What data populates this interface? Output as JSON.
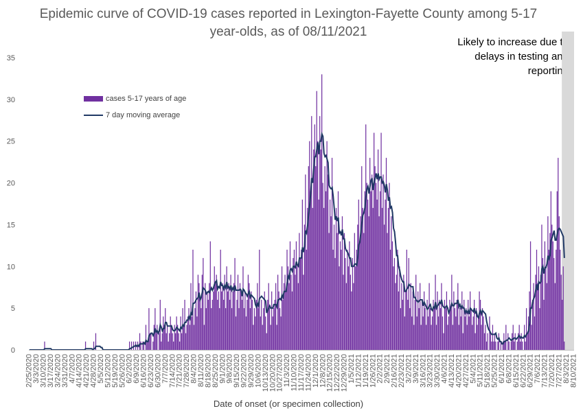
{
  "chart_data": {
    "type": "bar",
    "title": "Epidemic curve of COVID-19 cases reported in Lexington-Fayette County among 5-17 year-olds, as of 08/11/2021",
    "xlabel": "Date of onset (or specimen collection)",
    "ylabel": "",
    "ylim": [
      0,
      35
    ],
    "yticks": [
      0,
      5,
      10,
      15,
      20,
      25,
      30,
      35
    ],
    "grid": false,
    "legend_position": "upper-left",
    "x_start": "2020-02-25",
    "x_end": "2021-08-10",
    "x_tick_labels": [
      "2/25/2020",
      "3/3/2020",
      "3/10/2020",
      "3/17/2020",
      "3/24/2020",
      "3/31/2020",
      "4/7/2020",
      "4/14/2020",
      "4/21/2020",
      "4/28/2020",
      "5/5/2020",
      "5/12/2020",
      "5/19/2020",
      "5/26/2020",
      "6/2/2020",
      "6/9/2020",
      "6/16/2020",
      "6/23/2020",
      "6/30/2020",
      "7/7/2020",
      "7/14/2020",
      "7/21/2020",
      "7/28/2020",
      "8/4/2020",
      "8/11/2020",
      "8/18/2020",
      "8/25/2020",
      "9/1/2020",
      "9/8/2020",
      "9/15/2020",
      "9/22/2020",
      "9/29/2020",
      "10/6/2020",
      "10/13/2020",
      "10/20/2020",
      "10/27/2020",
      "11/3/2020",
      "11/10/2020",
      "11/17/2020",
      "11/24/2020",
      "12/1/2020",
      "12/8/2020",
      "12/15/2020",
      "12/22/2020",
      "12/29/2020",
      "1/5/2021",
      "1/12/2021",
      "1/19/2021",
      "1/26/2021",
      "2/2/2021",
      "2/9/2021",
      "2/16/2021",
      "2/23/2021",
      "3/2/2021",
      "3/9/2021",
      "3/16/2021",
      "3/23/2021",
      "3/30/2021",
      "4/6/2021",
      "4/13/2021",
      "4/20/2021",
      "4/27/2021",
      "5/4/2021",
      "5/11/2021",
      "5/18/2021",
      "5/25/2021",
      "6/1/2021",
      "6/8/2021",
      "6/15/2021",
      "6/22/2021",
      "6/29/2021",
      "7/6/2021",
      "7/13/2021",
      "7/20/2021",
      "7/27/2021",
      "8/3/2021",
      "8/10/2021"
    ],
    "series": [
      {
        "name": "cases 5-17 years of age",
        "kind": "bar",
        "color": "#7030A0",
        "values": [
          0,
          0,
          0,
          0,
          0,
          0,
          0,
          0,
          0,
          0,
          0,
          0,
          0,
          0,
          0,
          1,
          0,
          0,
          0,
          0,
          0,
          0,
          0,
          0,
          0,
          0,
          0,
          0,
          0,
          0,
          0,
          0,
          0,
          0,
          0,
          0,
          0,
          0,
          0,
          0,
          0,
          0,
          0,
          0,
          0,
          0,
          0,
          0,
          0,
          0,
          0,
          0,
          0,
          0,
          0,
          1,
          0,
          0,
          0,
          0,
          0,
          0,
          0,
          1,
          0,
          2,
          0,
          0,
          0,
          0,
          0,
          0,
          0,
          0,
          0,
          0,
          0,
          0,
          0,
          0,
          0,
          0,
          0,
          0,
          0,
          0,
          0,
          0,
          0,
          0,
          0,
          0,
          0,
          0,
          0,
          0,
          0,
          0,
          1,
          0,
          1,
          0,
          1,
          0,
          1,
          0,
          1,
          0,
          2,
          1,
          0,
          1,
          1,
          0,
          3,
          1,
          1,
          5,
          2,
          2,
          0,
          1,
          3,
          5,
          2,
          3,
          0,
          2,
          6,
          1,
          2,
          4,
          3,
          5,
          2,
          3,
          1,
          2,
          4,
          3,
          2,
          1,
          3,
          2,
          4,
          3,
          2,
          1,
          4,
          2,
          5,
          3,
          6,
          2,
          3,
          4,
          5,
          3,
          8,
          4,
          12,
          3,
          5,
          7,
          4,
          9,
          8,
          6,
          5,
          9,
          11,
          3,
          8,
          5,
          7,
          6,
          8,
          13,
          5,
          6,
          7,
          10,
          8,
          9,
          6,
          7,
          5,
          12,
          7,
          8,
          6,
          9,
          5,
          10,
          7,
          8,
          6,
          9,
          5,
          7,
          8,
          11,
          4,
          6,
          9,
          5,
          8,
          7,
          6,
          10,
          5,
          7,
          4,
          6,
          9,
          8,
          5,
          7,
          6,
          3,
          5,
          4,
          6,
          8,
          5,
          12,
          4,
          6,
          3,
          5,
          7,
          4,
          2,
          6,
          8,
          5,
          3,
          7,
          4,
          5,
          6,
          8,
          3,
          9,
          7,
          5,
          4,
          10,
          6,
          8,
          9,
          7,
          12,
          10,
          8,
          13,
          9,
          7,
          11,
          12,
          9,
          13,
          10,
          8,
          14,
          11,
          12,
          18,
          9,
          15,
          21,
          12,
          17,
          22,
          25,
          19,
          28,
          17,
          24,
          27,
          22,
          31,
          25,
          18,
          28,
          24,
          33,
          20,
          17,
          22,
          19,
          25,
          21,
          14,
          18,
          16,
          23,
          12,
          15,
          11,
          17,
          14,
          19,
          10,
          13,
          12,
          16,
          9,
          14,
          11,
          8,
          12,
          10,
          13,
          9,
          7,
          11,
          8,
          14,
          10,
          12,
          15,
          18,
          13,
          16,
          22,
          17,
          14,
          19,
          27,
          20,
          18,
          16,
          23,
          19,
          21,
          17,
          26,
          22,
          20,
          18,
          24,
          16,
          19,
          26,
          17,
          21,
          15,
          18,
          23,
          14,
          17,
          20,
          12,
          16,
          13,
          10,
          11,
          8,
          9,
          12,
          7,
          10,
          5,
          8,
          6,
          9,
          4,
          7,
          12,
          6,
          11,
          5,
          8,
          4,
          7,
          3,
          6,
          9,
          4,
          7,
          5,
          8,
          3,
          6,
          4,
          7,
          5,
          3,
          6,
          4,
          8,
          5,
          3,
          4,
          6,
          5,
          9,
          3,
          7,
          4,
          6,
          5,
          8,
          4,
          2,
          6,
          5,
          7,
          3,
          4,
          6,
          5,
          9,
          3,
          7,
          5,
          4,
          6,
          8,
          3,
          5,
          4,
          7,
          2,
          6,
          4,
          5,
          3,
          6,
          4,
          7,
          5,
          3,
          4,
          6,
          2,
          5,
          3,
          4,
          7,
          6,
          3,
          5,
          4,
          2,
          3,
          1,
          2,
          0,
          4,
          2,
          1,
          3,
          1,
          2,
          1,
          0,
          1,
          2,
          0,
          1,
          0,
          1,
          2,
          1,
          3,
          0,
          2,
          1,
          0,
          1,
          2,
          3,
          1,
          2,
          0,
          1,
          2,
          3,
          1,
          2,
          1,
          0,
          3,
          1,
          5,
          2,
          4,
          7,
          13,
          3,
          6,
          8,
          4,
          9,
          12,
          8,
          10,
          5,
          9,
          15,
          11,
          6,
          13,
          10,
          8,
          16,
          12,
          14,
          19,
          15,
          13,
          11,
          8,
          12,
          19,
          23,
          16,
          12,
          9,
          6,
          10,
          1
        ]
      },
      {
        "name": "7 day moving average",
        "kind": "line",
        "color": "#1F3864",
        "values": []
      }
    ],
    "annotations": [
      {
        "text": "Likely to increase due to delays in testing and reporting",
        "shade_from": "2021-07-30",
        "shade_to": "2021-08-10",
        "shade_color": "#D9D9D9"
      }
    ]
  }
}
